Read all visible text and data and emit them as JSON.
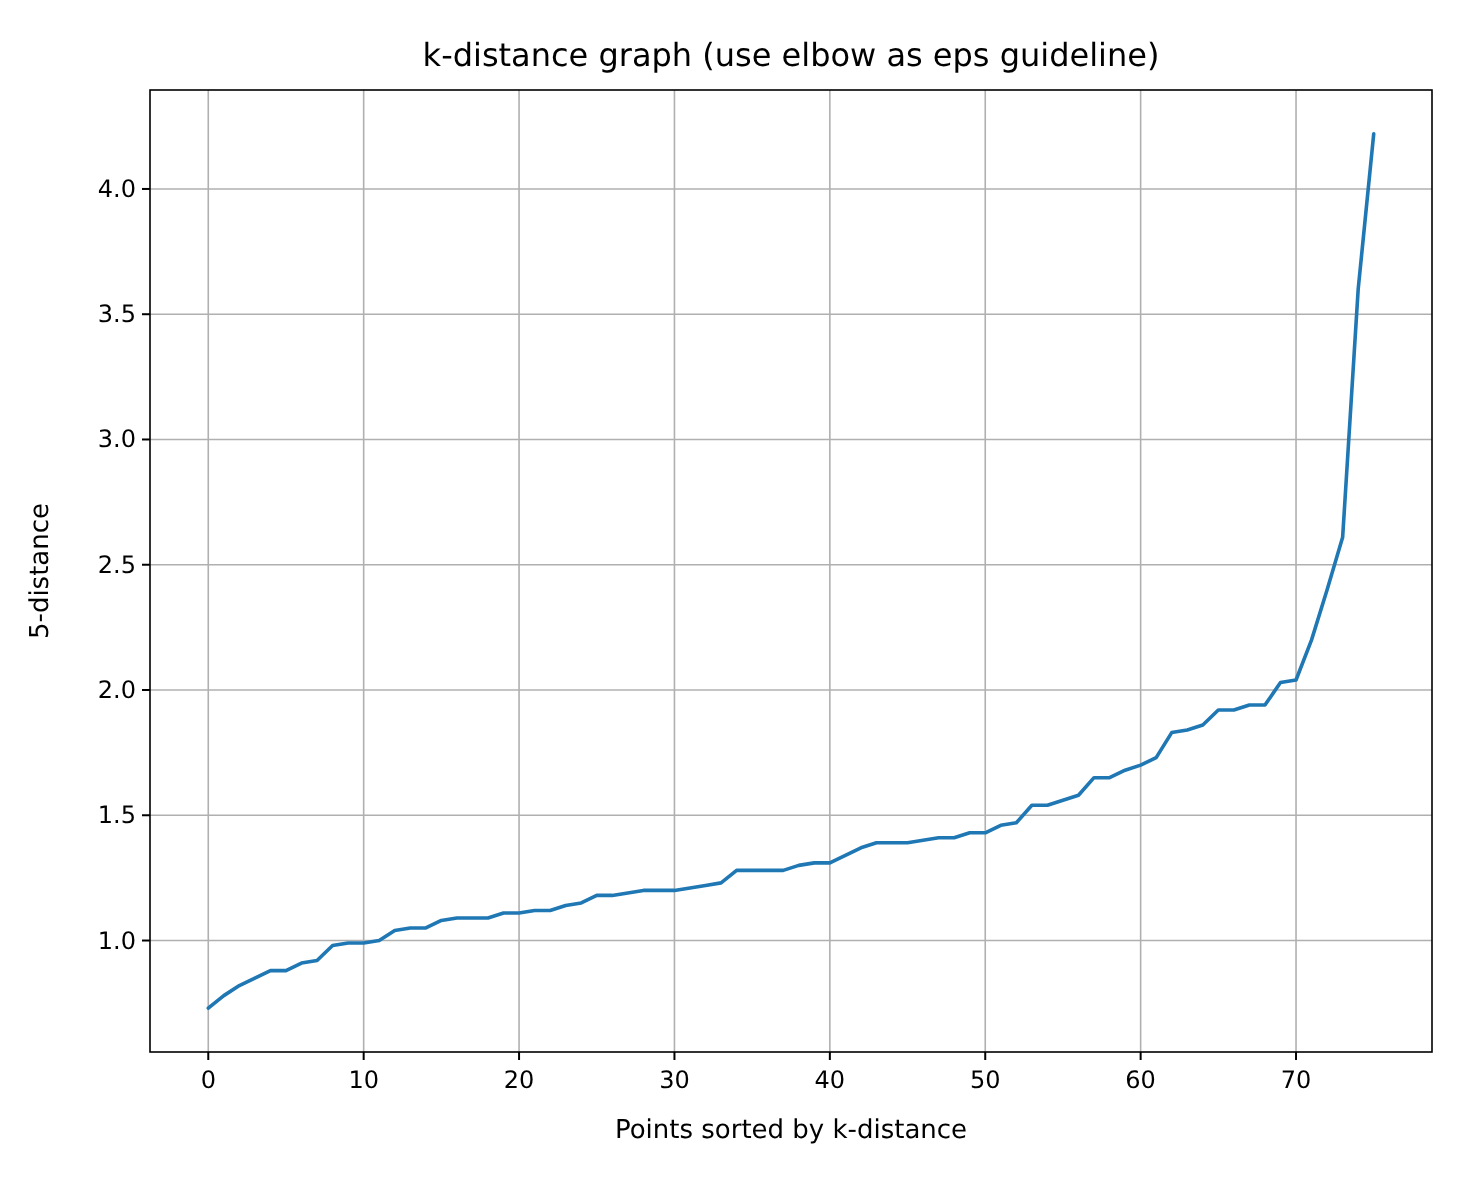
{
  "chart_data": {
    "type": "line",
    "title": "k-distance graph (use elbow as eps guideline)",
    "xlabel": "Points sorted by k-distance",
    "ylabel": "5-distance",
    "x": [
      0,
      1,
      2,
      3,
      4,
      5,
      6,
      7,
      8,
      9,
      10,
      11,
      12,
      13,
      14,
      15,
      16,
      17,
      18,
      19,
      20,
      21,
      22,
      23,
      24,
      25,
      26,
      27,
      28,
      29,
      30,
      31,
      32,
      33,
      34,
      35,
      36,
      37,
      38,
      39,
      40,
      41,
      42,
      43,
      44,
      45,
      46,
      47,
      48,
      49,
      50,
      51,
      52,
      53,
      54,
      55,
      56,
      57,
      58,
      59,
      60,
      61,
      62,
      63,
      64,
      65,
      66,
      67,
      68,
      69,
      70,
      71,
      72,
      73,
      74,
      75
    ],
    "series": [
      {
        "color": "#1f77b4",
        "values": [
          0.73,
          0.78,
          0.82,
          0.85,
          0.88,
          0.88,
          0.91,
          0.92,
          0.98,
          0.99,
          0.99,
          1.0,
          1.04,
          1.05,
          1.05,
          1.08,
          1.09,
          1.09,
          1.09,
          1.11,
          1.11,
          1.12,
          1.12,
          1.14,
          1.15,
          1.18,
          1.18,
          1.19,
          1.2,
          1.2,
          1.2,
          1.21,
          1.22,
          1.23,
          1.28,
          1.28,
          1.28,
          1.28,
          1.3,
          1.31,
          1.31,
          1.34,
          1.37,
          1.39,
          1.39,
          1.39,
          1.4,
          1.41,
          1.41,
          1.43,
          1.43,
          1.46,
          1.47,
          1.54,
          1.54,
          1.56,
          1.58,
          1.65,
          1.65,
          1.68,
          1.7,
          1.73,
          1.83,
          1.84,
          1.86,
          1.92,
          1.92,
          1.94,
          1.94,
          2.03,
          2.04,
          2.2,
          2.4,
          2.61,
          3.6,
          4.22
        ]
      }
    ],
    "xlim": [
      -3.75,
      78.75
    ],
    "ylim": [
      0.555,
      4.395
    ],
    "xticks": [
      0,
      10,
      20,
      30,
      40,
      50,
      60,
      70
    ],
    "yticks": [
      {
        "value": 1,
        "label": "1.0"
      },
      {
        "value": 1.5,
        "label": "1.5"
      },
      {
        "value": 2,
        "label": "2.0"
      },
      {
        "value": 2.5,
        "label": "2.5"
      },
      {
        "value": 3,
        "label": "3.0"
      },
      {
        "value": 3.5,
        "label": "3.5"
      },
      {
        "value": 4,
        "label": "4.0"
      }
    ],
    "grid": true,
    "marker": "none",
    "line_style": "solid"
  }
}
